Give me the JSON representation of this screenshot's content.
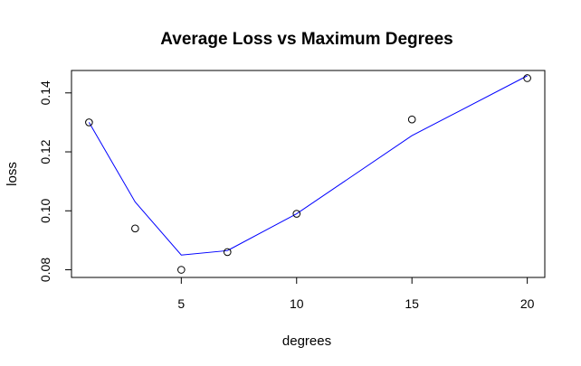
{
  "chart_data": {
    "type": "scatter",
    "title": "Average Loss vs Maximum Degrees",
    "xlabel": "degrees",
    "ylabel": "loss",
    "xlim": [
      0.24,
      20.76
    ],
    "ylim": [
      0.0774,
      0.1476
    ],
    "xticks": [
      5,
      10,
      15,
      20
    ],
    "yticks": [
      0.08,
      0.1,
      0.12,
      0.14
    ],
    "ytick_labels": [
      "0.08",
      "0.10",
      "0.12",
      "0.14"
    ],
    "points": {
      "x": [
        1,
        3,
        5,
        7,
        10,
        15,
        20
      ],
      "y": [
        0.13,
        0.094,
        0.08,
        0.086,
        0.099,
        0.131,
        0.145
      ]
    },
    "fit_line": {
      "x": [
        1,
        3,
        5,
        7,
        10,
        15,
        20
      ],
      "y": [
        0.13,
        0.103,
        0.085,
        0.0865,
        0.099,
        0.1255,
        0.1458
      ],
      "color": "#0000ff"
    },
    "point_color": "#000000",
    "grid": false
  }
}
